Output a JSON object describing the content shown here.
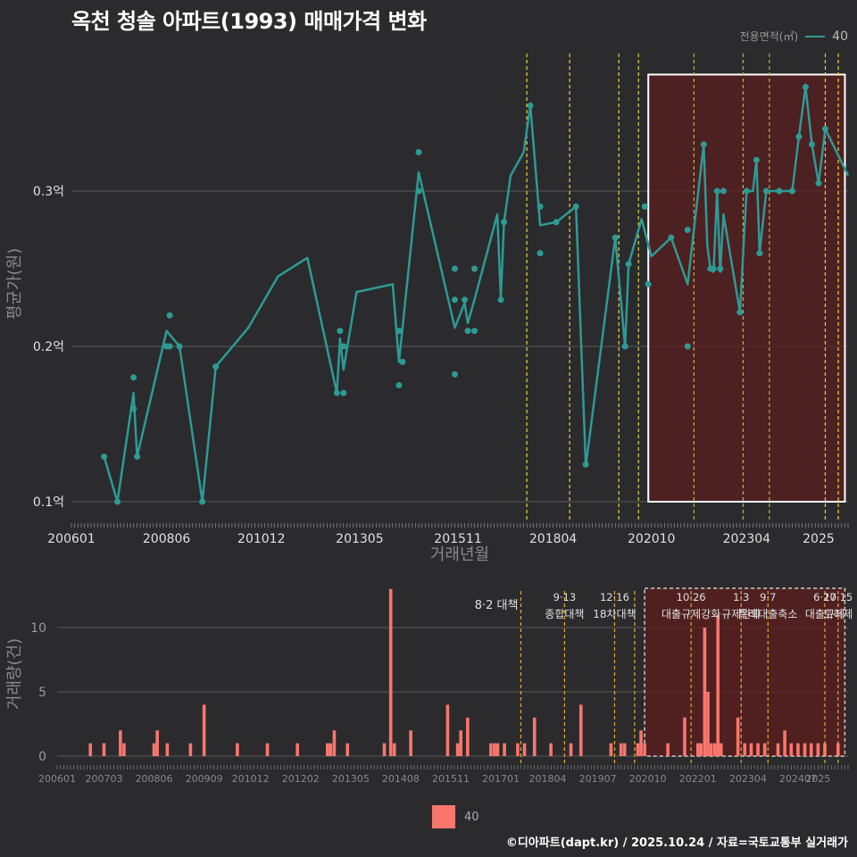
{
  "title": "옥천 청솔 아파트(1993) 매매가격 변화",
  "legend_top": {
    "title": "전용면적(㎡)",
    "label": "40",
    "color": "#2e9a95"
  },
  "legend_bottom": {
    "label": "40",
    "color": "#f8766d"
  },
  "footer": "©디아파트(dapt.kr) / 2025.10.24 / 자료=국토교통부 실거래가",
  "chart_data": [
    {
      "type": "line",
      "title": "옥천 청솔 아파트(1993) 매매가격 변화",
      "xlabel": "거래년월",
      "ylabel": "평균가(원)",
      "ylim": [
        0.095,
        0.385
      ],
      "y_ticks": [
        0.1,
        0.2,
        0.3
      ],
      "y_tick_labels": [
        "0.1억",
        "0.2억",
        "0.3억"
      ],
      "x_range": [
        2006.0,
        2025.75
      ],
      "x_ticks": [
        2006.0,
        2008.42,
        2010.83,
        2013.33,
        2015.83,
        2018.25,
        2020.75,
        2023.17,
        2025.0
      ],
      "x_tick_labels": [
        "200601",
        "200806",
        "201012",
        "201305",
        "201511",
        "201804",
        "202010",
        "202304",
        "2025"
      ],
      "highlight_box": {
        "x_from": 2020.67,
        "x_to": 2025.67,
        "y_from": 0.1,
        "y_to": 0.375
      },
      "series": [
        {
          "name": "40",
          "line": [
            [
              2006.83,
              0.129
            ],
            [
              2007.17,
              0.1
            ],
            [
              2007.58,
              0.17
            ],
            [
              2007.67,
              0.129
            ],
            [
              2008.42,
              0.21
            ],
            [
              2008.75,
              0.2
            ],
            [
              2009.33,
              0.1
            ],
            [
              2009.67,
              0.187
            ],
            [
              2010.5,
              0.212
            ],
            [
              2011.25,
              0.245
            ],
            [
              2012.0,
              0.257
            ],
            [
              2012.75,
              0.17
            ],
            [
              2012.83,
              0.205
            ],
            [
              2012.92,
              0.185
            ],
            [
              2013.25,
              0.235
            ],
            [
              2014.17,
              0.24
            ],
            [
              2014.33,
              0.19
            ],
            [
              2014.83,
              0.312
            ],
            [
              2015.75,
              0.212
            ],
            [
              2016.0,
              0.228
            ],
            [
              2016.08,
              0.215
            ],
            [
              2016.25,
              0.23
            ],
            [
              2016.83,
              0.285
            ],
            [
              2016.92,
              0.231
            ],
            [
              2017.0,
              0.28
            ],
            [
              2017.17,
              0.31
            ],
            [
              2017.5,
              0.325
            ],
            [
              2017.67,
              0.355
            ],
            [
              2017.92,
              0.278
            ],
            [
              2018.33,
              0.28
            ],
            [
              2018.83,
              0.29
            ],
            [
              2019.08,
              0.123
            ],
            [
              2019.83,
              0.27
            ],
            [
              2020.08,
              0.2
            ],
            [
              2020.17,
              0.253
            ],
            [
              2020.5,
              0.282
            ],
            [
              2020.75,
              0.258
            ],
            [
              2021.25,
              0.27
            ],
            [
              2021.67,
              0.24
            ],
            [
              2022.08,
              0.33
            ],
            [
              2022.17,
              0.265
            ],
            [
              2022.25,
              0.25
            ],
            [
              2022.33,
              0.248
            ],
            [
              2022.42,
              0.3
            ],
            [
              2022.5,
              0.248
            ],
            [
              2022.58,
              0.285
            ],
            [
              2023.0,
              0.222
            ],
            [
              2023.17,
              0.3
            ],
            [
              2023.33,
              0.3
            ],
            [
              2023.42,
              0.32
            ],
            [
              2023.5,
              0.26
            ],
            [
              2023.67,
              0.3
            ],
            [
              2024.0,
              0.3
            ],
            [
              2024.33,
              0.3
            ],
            [
              2024.5,
              0.335
            ],
            [
              2024.67,
              0.367
            ],
            [
              2024.83,
              0.33
            ],
            [
              2025.0,
              0.305
            ],
            [
              2025.17,
              0.34
            ],
            [
              2025.75,
              0.31
            ]
          ],
          "points": [
            [
              2006.83,
              0.129
            ],
            [
              2007.17,
              0.1
            ],
            [
              2007.58,
              0.18
            ],
            [
              2007.58,
              0.16
            ],
            [
              2007.67,
              0.129
            ],
            [
              2008.42,
              0.2
            ],
            [
              2008.5,
              0.22
            ],
            [
              2008.5,
              0.2
            ],
            [
              2008.75,
              0.2
            ],
            [
              2009.33,
              0.1
            ],
            [
              2009.67,
              0.187
            ],
            [
              2012.75,
              0.17
            ],
            [
              2012.83,
              0.21
            ],
            [
              2012.92,
              0.17
            ],
            [
              2012.92,
              0.2
            ],
            [
              2014.33,
              0.21
            ],
            [
              2014.33,
              0.175
            ],
            [
              2014.42,
              0.19
            ],
            [
              2014.83,
              0.325
            ],
            [
              2014.83,
              0.3
            ],
            [
              2015.75,
              0.25
            ],
            [
              2015.75,
              0.23
            ],
            [
              2015.75,
              0.182
            ],
            [
              2016.0,
              0.23
            ],
            [
              2016.08,
              0.21
            ],
            [
              2016.25,
              0.21
            ],
            [
              2016.25,
              0.25
            ],
            [
              2016.92,
              0.23
            ],
            [
              2017.0,
              0.28
            ],
            [
              2017.67,
              0.355
            ],
            [
              2017.92,
              0.29
            ],
            [
              2017.92,
              0.26
            ],
            [
              2018.33,
              0.28
            ],
            [
              2018.83,
              0.29
            ],
            [
              2019.08,
              0.124
            ],
            [
              2019.83,
              0.27
            ],
            [
              2020.08,
              0.2
            ],
            [
              2020.17,
              0.253
            ],
            [
              2020.58,
              0.29
            ],
            [
              2020.67,
              0.24
            ],
            [
              2021.25,
              0.27
            ],
            [
              2021.67,
              0.275
            ],
            [
              2021.67,
              0.2
            ],
            [
              2022.08,
              0.33
            ],
            [
              2022.25,
              0.25
            ],
            [
              2022.33,
              0.25
            ],
            [
              2022.42,
              0.3
            ],
            [
              2022.5,
              0.25
            ],
            [
              2022.58,
              0.3
            ],
            [
              2023.0,
              0.222
            ],
            [
              2023.17,
              0.3
            ],
            [
              2023.42,
              0.32
            ],
            [
              2023.5,
              0.26
            ],
            [
              2023.67,
              0.3
            ],
            [
              2024.0,
              0.3
            ],
            [
              2024.33,
              0.3
            ],
            [
              2024.5,
              0.335
            ],
            [
              2024.67,
              0.367
            ],
            [
              2024.83,
              0.33
            ],
            [
              2025.0,
              0.305
            ],
            [
              2025.17,
              0.34
            ]
          ]
        }
      ],
      "policy_lines": [
        {
          "x": 2017.58,
          "color": "#e6d43a",
          "label": "8·2 대책"
        },
        {
          "x": 2018.67,
          "color": "#e6d43a",
          "label": "9·13 종합대책"
        },
        {
          "x": 2019.92,
          "color": "#e6d43a",
          "label": "12·16 18차대책"
        },
        {
          "x": 2020.42,
          "color": "#e6d43a",
          "label": ""
        },
        {
          "x": 2021.83,
          "color": "#b5b53a",
          "label": "10·26 대출규제강화"
        },
        {
          "x": 2023.08,
          "color": "#b5b53a",
          "label": "1·3 규제완화"
        },
        {
          "x": 2023.75,
          "color": "#b5b53a",
          "label": "9·7 특례대출축소"
        },
        {
          "x": 2025.17,
          "color": "#e6d43a",
          "label": "6·27 대출규제"
        },
        {
          "x": 2025.5,
          "color": "#ffd400",
          "label": "10·15 토허제"
        }
      ]
    },
    {
      "type": "bar",
      "ylabel": "거래량(건)",
      "ylim": [
        0,
        13.5
      ],
      "y_ticks": [
        0,
        5,
        10
      ],
      "y_tick_labels": [
        "0",
        "5",
        "10"
      ],
      "x_ticks": [
        2006.0,
        2007.17,
        2008.42,
        2009.67,
        2010.83,
        2012.08,
        2013.33,
        2014.58,
        2015.83,
        2017.08,
        2018.25,
        2019.5,
        2020.75,
        2022.0,
        2023.25,
        2024.5,
        2025.0
      ],
      "x_tick_labels": [
        "200601",
        "200703",
        "200806",
        "200909",
        "201012",
        "201202",
        "201305",
        "201408",
        "201511",
        "201701",
        "201804",
        "201907",
        "202010",
        "202201",
        "202304",
        "202407",
        "2025"
      ],
      "highlight_box": {
        "x_from": 2020.67,
        "x_to": 2025.67
      },
      "policy_annotations": [
        {
          "x": 2017.58,
          "line1": "8·2 대책",
          "line2": ""
        },
        {
          "x": 2018.67,
          "line1": "9·13",
          "line2": "종합대책"
        },
        {
          "x": 2019.92,
          "line1": "12·16",
          "line2": "18차대책"
        },
        {
          "x": 2021.83,
          "line1": "10·26",
          "line2": "대출규제강화"
        },
        {
          "x": 2023.08,
          "line1": "1·3",
          "line2": "규제완화"
        },
        {
          "x": 2023.75,
          "line1": "9·7",
          "line2": "특례대출축소"
        },
        {
          "x": 2025.17,
          "line1": "6·27",
          "line2": "대출규제"
        },
        {
          "x": 2025.5,
          "line1": "10·15",
          "line2": "토허제"
        }
      ],
      "series": [
        {
          "name": "40",
          "bars": [
            [
              2006.83,
              1
            ],
            [
              2007.17,
              1
            ],
            [
              2007.58,
              2
            ],
            [
              2007.67,
              1
            ],
            [
              2008.42,
              1
            ],
            [
              2008.5,
              2
            ],
            [
              2008.75,
              1
            ],
            [
              2009.33,
              1
            ],
            [
              2009.67,
              4
            ],
            [
              2010.5,
              1
            ],
            [
              2011.25,
              1
            ],
            [
              2012.0,
              1
            ],
            [
              2012.75,
              1
            ],
            [
              2012.83,
              1
            ],
            [
              2012.92,
              2
            ],
            [
              2013.25,
              1
            ],
            [
              2014.17,
              1
            ],
            [
              2014.33,
              13
            ],
            [
              2014.42,
              1
            ],
            [
              2014.83,
              2
            ],
            [
              2015.75,
              4
            ],
            [
              2016.0,
              1
            ],
            [
              2016.08,
              2
            ],
            [
              2016.25,
              3
            ],
            [
              2016.83,
              1
            ],
            [
              2016.92,
              1
            ],
            [
              2017.0,
              1
            ],
            [
              2017.17,
              1
            ],
            [
              2017.5,
              1
            ],
            [
              2017.67,
              1
            ],
            [
              2017.92,
              3
            ],
            [
              2018.33,
              1
            ],
            [
              2018.83,
              1
            ],
            [
              2019.08,
              4
            ],
            [
              2019.83,
              1
            ],
            [
              2020.08,
              1
            ],
            [
              2020.17,
              1
            ],
            [
              2020.5,
              1
            ],
            [
              2020.58,
              2
            ],
            [
              2020.67,
              1
            ],
            [
              2021.25,
              1
            ],
            [
              2021.67,
              3
            ],
            [
              2022.0,
              1
            ],
            [
              2022.08,
              1
            ],
            [
              2022.17,
              10
            ],
            [
              2022.25,
              5
            ],
            [
              2022.33,
              1
            ],
            [
              2022.42,
              1
            ],
            [
              2022.5,
              11
            ],
            [
              2022.58,
              1
            ],
            [
              2023.0,
              3
            ],
            [
              2023.17,
              1
            ],
            [
              2023.33,
              1
            ],
            [
              2023.5,
              1
            ],
            [
              2023.67,
              1
            ],
            [
              2024.0,
              1
            ],
            [
              2024.17,
              2
            ],
            [
              2024.33,
              1
            ],
            [
              2024.5,
              1
            ],
            [
              2024.67,
              1
            ],
            [
              2024.83,
              1
            ],
            [
              2025.0,
              1
            ],
            [
              2025.17,
              1
            ],
            [
              2025.5,
              1
            ]
          ]
        }
      ]
    }
  ]
}
